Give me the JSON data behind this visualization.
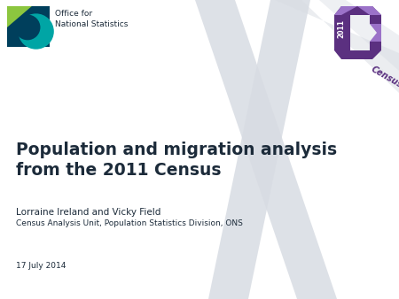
{
  "background_color": "#ffffff",
  "title_line1": "Population and migration analysis",
  "title_line2": "from the 2011 Census",
  "author_line": "Lorraine Ireland and Vicky Field",
  "org_line": "Census Analysis Unit, Population Statistics Division, ONS",
  "date_line": "17 July 2014",
  "title_color": "#1c2b3a",
  "title_fontsize": 13.5,
  "author_fontsize": 7.5,
  "org_fontsize": 6.5,
  "date_fontsize": 6.5,
  "ons_text": "Office for\nNational Statistics",
  "ons_color": "#1c2b3a",
  "ons_logo_teal": "#00a5a5",
  "ons_logo_dark": "#003f5c",
  "ons_logo_green": "#8cc63f",
  "watermark_color": "#d8dce3",
  "watermark_alpha": 0.85,
  "census_purple_dark": "#5b3080",
  "census_purple_light": "#9b72c8",
  "census_year": "2011",
  "census_word": "Census"
}
